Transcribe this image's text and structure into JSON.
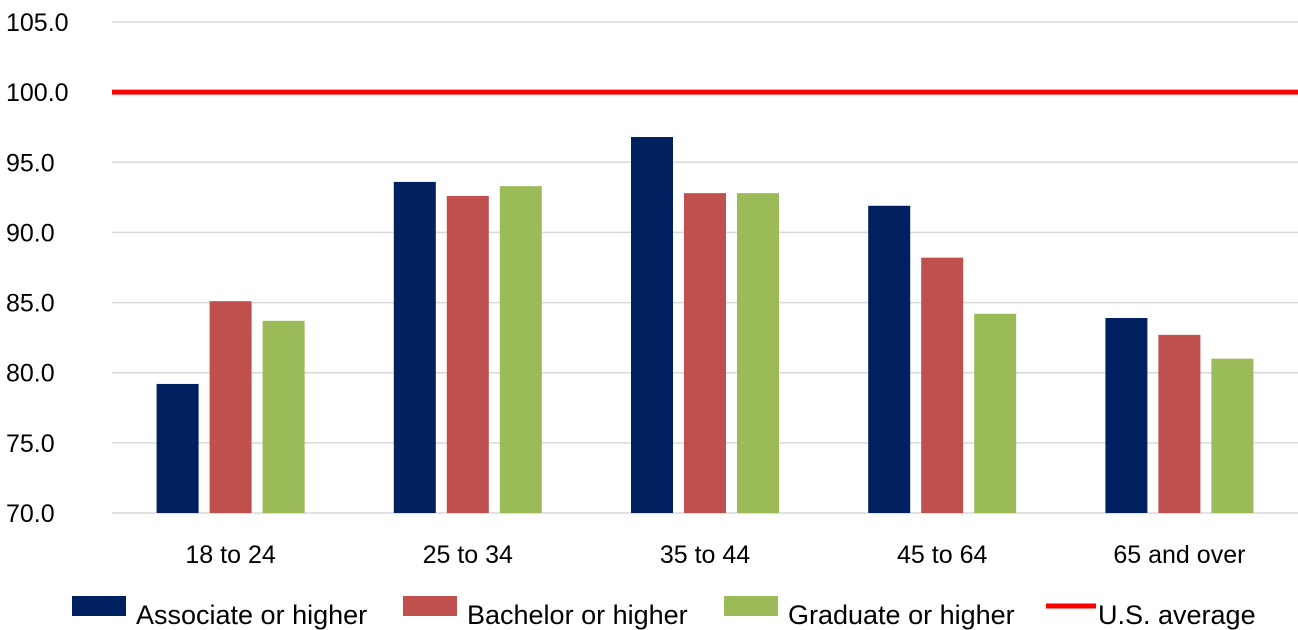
{
  "chart_data": {
    "type": "bar",
    "categories": [
      "18 to 24",
      "25 to 34",
      "35 to 44",
      "45 to 64",
      "65 and over"
    ],
    "series": [
      {
        "name": "Associate or higher",
        "color": "#002060",
        "values": [
          79.2,
          93.6,
          96.8,
          91.9,
          83.9
        ]
      },
      {
        "name": "Bachelor or higher",
        "color": "#c0504d",
        "values": [
          85.1,
          92.6,
          92.8,
          88.2,
          82.7
        ]
      },
      {
        "name": "Graduate or higher",
        "color": "#9bbb59",
        "values": [
          83.7,
          93.3,
          92.8,
          84.2,
          81.0
        ]
      }
    ],
    "reference_line": {
      "name": "U.S. average",
      "value": 100.0,
      "color": "#ff0000"
    },
    "ylim": [
      70.0,
      105.0
    ],
    "yticks": [
      "70.0",
      "75.0",
      "80.0",
      "85.0",
      "90.0",
      "95.0",
      "100.0",
      "105.0"
    ],
    "grid": true,
    "legend_position": "bottom",
    "title": "",
    "xlabel": "",
    "ylabel": ""
  }
}
